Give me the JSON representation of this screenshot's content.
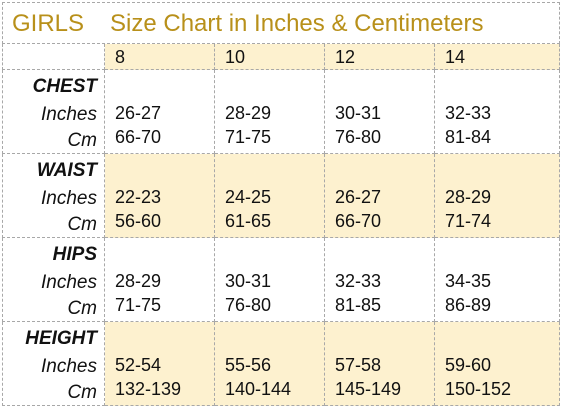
{
  "title": {
    "brand": "GIRLS",
    "text": "Size Chart in Inches & Centimeters"
  },
  "sizes": [
    "8",
    "10",
    "12",
    "14"
  ],
  "sections": [
    {
      "name": "CHEST",
      "row_labels": [
        "Inches",
        "Cm"
      ],
      "inches": [
        "26-27",
        "28-29",
        "30-31",
        "32-33"
      ],
      "cm": [
        "66-70",
        "71-75",
        "76-80",
        "81-84"
      ]
    },
    {
      "name": "WAIST",
      "row_labels": [
        "Inches",
        "Cm"
      ],
      "inches": [
        "22-23",
        "24-25",
        "26-27",
        "28-29"
      ],
      "cm": [
        "56-60",
        "61-65",
        "66-70",
        "71-74"
      ]
    },
    {
      "name": "HIPS",
      "row_labels": [
        "Inches",
        "Cm"
      ],
      "inches": [
        "28-29",
        "30-31",
        "32-33",
        "34-35"
      ],
      "cm": [
        "71-75",
        "76-80",
        "81-85",
        "86-89"
      ]
    },
    {
      "name": "HEIGHT",
      "row_labels": [
        "Inches",
        "Cm"
      ],
      "inches": [
        "52-54",
        "55-56",
        "57-58",
        "59-60"
      ],
      "cm": [
        "132-139",
        "140-144",
        "145-149",
        "150-152"
      ]
    }
  ]
}
